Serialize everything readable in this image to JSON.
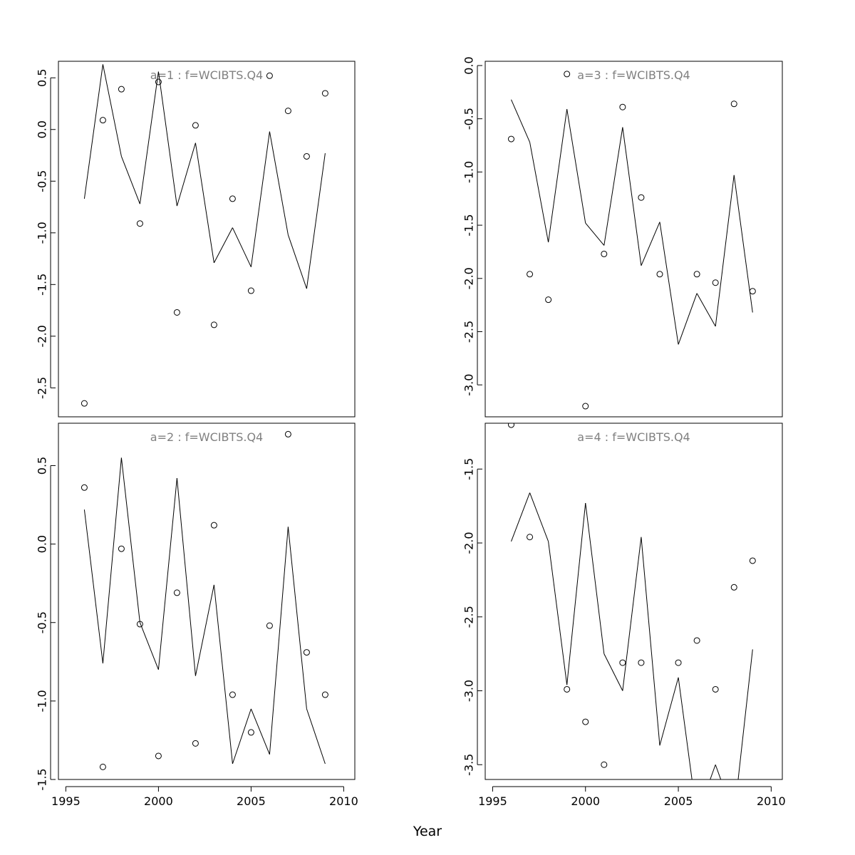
{
  "chart_data": {
    "type": "line",
    "xlabel": "Year",
    "panels": [
      {
        "title": "a=1  :  f=WCIBTS.Q4",
        "xlim": [
          1994.6,
          2010.6
        ],
        "ylim": [
          -2.78,
          0.66
        ],
        "yticks": [
          0.5,
          0.0,
          -0.5,
          -1.0,
          -1.5,
          -2.0,
          -2.5
        ],
        "ytick_labels": [
          "0.5",
          "0.0",
          "-0.5",
          "-1.0",
          "-1.5",
          "-2.0",
          "-2.5"
        ],
        "show_xaxis": false,
        "line": {
          "x": [
            1996,
            1997,
            1998,
            1999,
            2000,
            2001,
            2002,
            2003,
            2004,
            2005,
            2006,
            2007,
            2008,
            2009
          ],
          "y": [
            -0.67,
            0.63,
            -0.26,
            -0.72,
            0.56,
            -0.74,
            -0.13,
            -1.29,
            -0.95,
            -1.33,
            -0.02,
            -1.02,
            -1.54,
            -0.23
          ]
        },
        "points": {
          "x": [
            1996,
            1997,
            1998,
            1999,
            2000,
            2001,
            2002,
            2003,
            2004,
            2005,
            2006,
            2007,
            2008,
            2009
          ],
          "y": [
            -2.65,
            0.09,
            0.39,
            -0.91,
            0.46,
            -1.77,
            0.04,
            -1.89,
            -0.67,
            -1.56,
            0.52,
            0.18,
            -0.26,
            0.35
          ]
        }
      },
      {
        "title": "a=3  :  f=WCIBTS.Q4",
        "xlim": [
          1994.6,
          2010.6
        ],
        "ylim": [
          -3.3,
          0.04
        ],
        "yticks": [
          0.0,
          -0.5,
          -1.0,
          -1.5,
          -2.0,
          -2.5,
          -3.0
        ],
        "ytick_labels": [
          "0.0",
          "-0.5",
          "-1.0",
          "-1.5",
          "-2.0",
          "-2.5",
          "-3.0"
        ],
        "show_xaxis": false,
        "line": {
          "x": [
            1996,
            1997,
            1998,
            1999,
            2000,
            2001,
            2002,
            2003,
            2004,
            2005,
            2006,
            2007,
            2008,
            2009
          ],
          "y": [
            -0.32,
            -0.72,
            -1.66,
            -0.41,
            -1.48,
            -1.69,
            -0.58,
            -1.88,
            -1.47,
            -2.62,
            -2.14,
            -2.45,
            -1.03,
            -2.32
          ]
        },
        "points": {
          "x": [
            1996,
            1997,
            1998,
            1999,
            2000,
            2001,
            2002,
            2003,
            2004,
            2005,
            2006,
            2007,
            2008,
            2009
          ],
          "y": [
            -0.69,
            -1.96,
            -2.2,
            -0.08,
            -3.2,
            -1.77,
            -0.39,
            -1.24,
            -1.96,
            null,
            -1.96,
            -2.04,
            -0.36,
            -2.12
          ]
        }
      },
      {
        "title": "a=2  :  f=WCIBTS.Q4",
        "xlim": [
          1994.6,
          2010.6
        ],
        "ylim": [
          -1.5,
          0.77
        ],
        "yticks": [
          0.5,
          0.0,
          -0.5,
          -1.0,
          -1.5
        ],
        "ytick_labels": [
          "0.5",
          "0.0",
          "-0.5",
          "-1.0",
          "-1.5"
        ],
        "show_xaxis": true,
        "xticks": [
          1995,
          2000,
          2005,
          2010
        ],
        "xtick_labels": [
          "1995",
          "2000",
          "2005",
          "2010"
        ],
        "line": {
          "x": [
            1996,
            1997,
            1998,
            1999,
            2000,
            2001,
            2002,
            2003,
            2004,
            2005,
            2006,
            2007,
            2008,
            2009
          ],
          "y": [
            0.22,
            -0.76,
            0.55,
            -0.5,
            -0.8,
            0.42,
            -0.84,
            -0.26,
            -1.4,
            -1.05,
            -1.34,
            0.11,
            -1.05,
            -1.4
          ]
        },
        "points": {
          "x": [
            1996,
            1997,
            1998,
            1999,
            2000,
            2001,
            2002,
            2003,
            2004,
            2005,
            2006,
            2007,
            2008,
            2009
          ],
          "y": [
            0.36,
            -1.42,
            -0.03,
            -0.51,
            -1.35,
            -0.31,
            -1.27,
            0.12,
            -0.96,
            -1.2,
            -0.52,
            0.7,
            -0.69,
            -0.96
          ]
        }
      },
      {
        "title": "a=4  :  f=WCIBTS.Q4",
        "xlim": [
          1994.6,
          2010.6
        ],
        "ylim": [
          -3.6,
          -1.19
        ],
        "yticks": [
          -1.5,
          -2.0,
          -2.5,
          -3.0,
          -3.5
        ],
        "ytick_labels": [
          "-1.5",
          "-2.0",
          "-2.5",
          "-3.0",
          "-3.5"
        ],
        "show_xaxis": true,
        "xticks": [
          1995,
          2000,
          2005,
          2010
        ],
        "xtick_labels": [
          "1995",
          "2000",
          "2005",
          "2010"
        ],
        "line": {
          "x": [
            1996,
            1997,
            1998,
            1999,
            2000,
            2001,
            2002,
            2003,
            2004,
            2005,
            2006,
            2007,
            2008,
            2009
          ],
          "y": [
            -1.99,
            -1.66,
            -1.99,
            -2.96,
            -1.73,
            -2.75,
            -3.0,
            -1.96,
            -3.37,
            -2.91,
            -3.85,
            -3.5,
            -3.85,
            -2.72
          ]
        },
        "points": {
          "x": [
            1996,
            1997,
            1998,
            1999,
            2000,
            2001,
            2002,
            2003,
            2004,
            2005,
            2006,
            2007,
            2008,
            2009
          ],
          "y": [
            -1.2,
            -1.96,
            null,
            -2.99,
            -3.21,
            -3.5,
            -2.81,
            -2.81,
            null,
            -2.81,
            -2.66,
            -2.99,
            -2.3,
            -2.12
          ]
        }
      }
    ]
  }
}
